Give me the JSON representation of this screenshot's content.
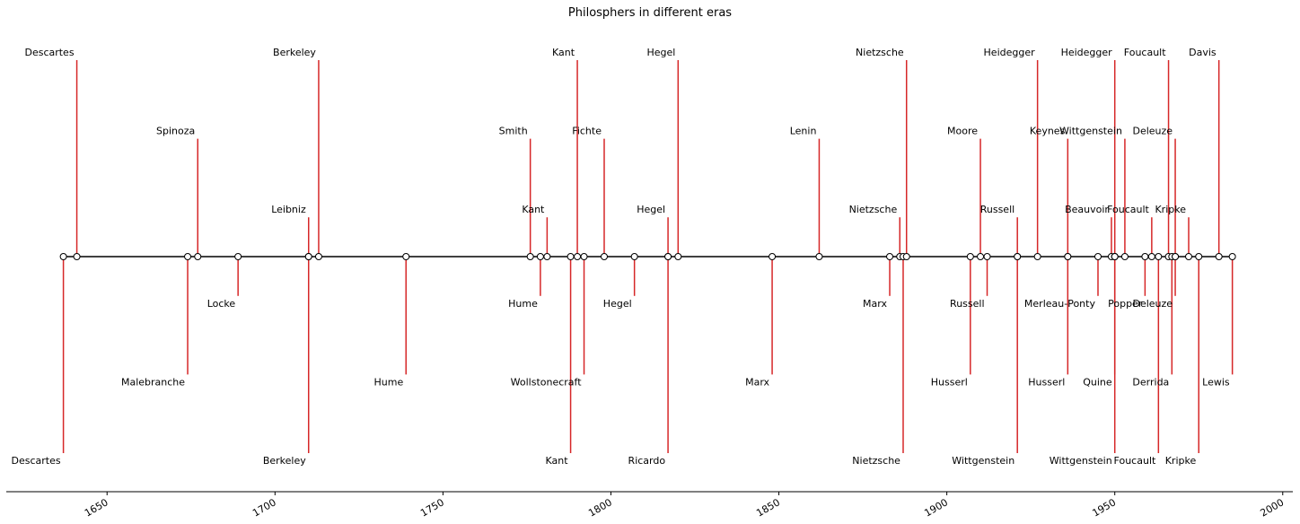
{
  "chart_data": {
    "type": "timeline",
    "title": "Philosphers in different eras",
    "xlim": [
      1620,
      2003
    ],
    "x_ticks": [
      1650,
      1700,
      1750,
      1800,
      1850,
      1900,
      1950,
      2000
    ],
    "x_tick_labels": [
      "1650",
      "1700",
      "1750",
      "1800",
      "1850",
      "1900",
      "1950",
      "2000"
    ],
    "grid": false,
    "colors": {
      "stem": "#d62728",
      "baseline": "#000000",
      "marker_fill": "#ffffff",
      "marker_edge": "#000000"
    },
    "events": [
      {
        "name": "Descartes",
        "year": 1637,
        "level": -5
      },
      {
        "name": "Descartes",
        "year": 1641,
        "level": 5
      },
      {
        "name": "Malebranche",
        "year": 1674,
        "level": -3
      },
      {
        "name": "Spinoza",
        "year": 1677,
        "level": 3
      },
      {
        "name": "Locke",
        "year": 1689,
        "level": -1
      },
      {
        "name": "Berkeley",
        "year": 1710,
        "level": -5
      },
      {
        "name": "Leibniz",
        "year": 1710,
        "level": 1
      },
      {
        "name": "Berkeley",
        "year": 1713,
        "level": 5
      },
      {
        "name": "Hume",
        "year": 1739,
        "level": -3
      },
      {
        "name": "Smith",
        "year": 1776,
        "level": 3
      },
      {
        "name": "Hume",
        "year": 1779,
        "level": -1
      },
      {
        "name": "Kant",
        "year": 1781,
        "level": 1
      },
      {
        "name": "Kant",
        "year": 1788,
        "level": -5
      },
      {
        "name": "Kant",
        "year": 1790,
        "level": 5
      },
      {
        "name": "Wollstonecraft",
        "year": 1792,
        "level": -3
      },
      {
        "name": "Fichte",
        "year": 1798,
        "level": 3
      },
      {
        "name": "Hegel",
        "year": 1807,
        "level": -1
      },
      {
        "name": "Ricardo",
        "year": 1817,
        "level": -5
      },
      {
        "name": "Hegel",
        "year": 1817,
        "level": 1
      },
      {
        "name": "Hegel",
        "year": 1820,
        "level": 5
      },
      {
        "name": "Marx",
        "year": 1848,
        "level": -3
      },
      {
        "name": "Lenin",
        "year": 1862,
        "level": 3
      },
      {
        "name": "Marx",
        "year": 1883,
        "level": -1
      },
      {
        "name": "Nietzsche",
        "year": 1886,
        "level": 1
      },
      {
        "name": "Nietzsche",
        "year": 1887,
        "level": -5
      },
      {
        "name": "Nietzsche",
        "year": 1888,
        "level": 5
      },
      {
        "name": "Husserl",
        "year": 1907,
        "level": -3
      },
      {
        "name": "Moore",
        "year": 1910,
        "level": 3
      },
      {
        "name": "Russell",
        "year": 1912,
        "level": -1
      },
      {
        "name": "Wittgenstein",
        "year": 1921,
        "level": -5
      },
      {
        "name": "Russell",
        "year": 1921,
        "level": 1
      },
      {
        "name": "Heidegger",
        "year": 1927,
        "level": 5
      },
      {
        "name": "Husserl",
        "year": 1936,
        "level": -3
      },
      {
        "name": "Keynes",
        "year": 1936,
        "level": 3
      },
      {
        "name": "Merleau-Ponty",
        "year": 1945,
        "level": -1
      },
      {
        "name": "Beauvoir",
        "year": 1949,
        "level": 1
      },
      {
        "name": "Wittgenstein",
        "year": 1950,
        "level": -5
      },
      {
        "name": "Quine",
        "year": 1950,
        "level": -3
      },
      {
        "name": "Heidegger",
        "year": 1950,
        "level": 5
      },
      {
        "name": "Wittgenstein",
        "year": 1953,
        "level": 3
      },
      {
        "name": "Popper",
        "year": 1959,
        "level": -1
      },
      {
        "name": "Foucault",
        "year": 1961,
        "level": 1
      },
      {
        "name": "Foucault",
        "year": 1963,
        "level": -5
      },
      {
        "name": "Foucault",
        "year": 1966,
        "level": 5
      },
      {
        "name": "Derrida",
        "year": 1967,
        "level": -3
      },
      {
        "name": "Deleuze",
        "year": 1968,
        "level": 3
      },
      {
        "name": "Deleuze",
        "year": 1968,
        "level": -1
      },
      {
        "name": "Kripke",
        "year": 1972,
        "level": 1
      },
      {
        "name": "Kripke",
        "year": 1975,
        "level": -5
      },
      {
        "name": "Davis",
        "year": 1981,
        "level": 5
      },
      {
        "name": "Lewis",
        "year": 1985,
        "level": -3
      }
    ]
  }
}
